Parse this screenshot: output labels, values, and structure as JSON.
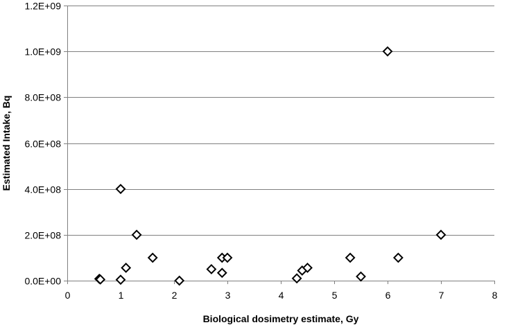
{
  "chart_data": {
    "type": "scatter",
    "title": "",
    "xlabel": "Biological dosimetry estimate, Gy",
    "ylabel": "Estimated Intake, Bq",
    "xlim": [
      0,
      8
    ],
    "ylim": [
      0,
      1200000000
    ],
    "grid": "horizontal",
    "marker": "diamond",
    "x_ticks": [
      0,
      1,
      2,
      3,
      4,
      5,
      6,
      7,
      8
    ],
    "x_tick_labels": [
      "0",
      "1",
      "2",
      "3",
      "4",
      "5",
      "6",
      "7",
      "8"
    ],
    "y_ticks": [
      0,
      200000000,
      400000000,
      600000000,
      800000000,
      1000000000,
      1200000000
    ],
    "y_tick_labels": [
      "0.0E+00",
      "2.0E+08",
      "4.0E+08",
      "6.0E+08",
      "8.0E+08",
      "1.0E+09",
      "1.2E+09"
    ],
    "points": [
      {
        "x": 0.6,
        "y": 8000000
      },
      {
        "x": 0.62,
        "y": 5000000
      },
      {
        "x": 1.0,
        "y": 400000000
      },
      {
        "x": 1.0,
        "y": 4000000
      },
      {
        "x": 1.1,
        "y": 56000000
      },
      {
        "x": 1.3,
        "y": 200000000
      },
      {
        "x": 1.6,
        "y": 100000000
      },
      {
        "x": 2.1,
        "y": 0
      },
      {
        "x": 2.7,
        "y": 50000000
      },
      {
        "x": 2.9,
        "y": 100000000
      },
      {
        "x": 2.9,
        "y": 34000000
      },
      {
        "x": 3.0,
        "y": 100000000
      },
      {
        "x": 4.3,
        "y": 10000000
      },
      {
        "x": 4.4,
        "y": 44000000
      },
      {
        "x": 4.5,
        "y": 56000000
      },
      {
        "x": 5.3,
        "y": 100000000
      },
      {
        "x": 5.5,
        "y": 18000000
      },
      {
        "x": 6.0,
        "y": 1000000000
      },
      {
        "x": 6.2,
        "y": 100000000
      },
      {
        "x": 7.0,
        "y": 200000000
      }
    ]
  }
}
